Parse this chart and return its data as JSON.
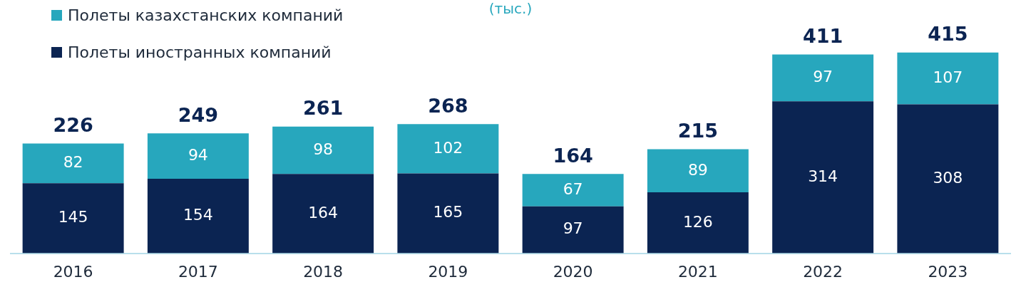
{
  "chart_data": {
    "type": "bar",
    "title": "(тыс.)",
    "stacked": true,
    "data_labels": true,
    "legend": "top left",
    "grid": false,
    "categories": [
      "2016",
      "2017",
      "2018",
      "2019",
      "2020",
      "2021",
      "2022",
      "2023"
    ],
    "series": [
      {
        "name": "Полеты иностранных компаний",
        "color": "#0b2452",
        "values": [
          145,
          154,
          164,
          165,
          97,
          126,
          314,
          308
        ]
      },
      {
        "name": "Полеты казахстанских компаний",
        "color": "#27a7bd",
        "values": [
          82,
          94,
          98,
          102,
          67,
          89,
          97,
          107
        ]
      }
    ],
    "totals": [
      "226",
      "249",
      "261",
      "268",
      "164",
      "215",
      "411",
      "415"
    ]
  }
}
